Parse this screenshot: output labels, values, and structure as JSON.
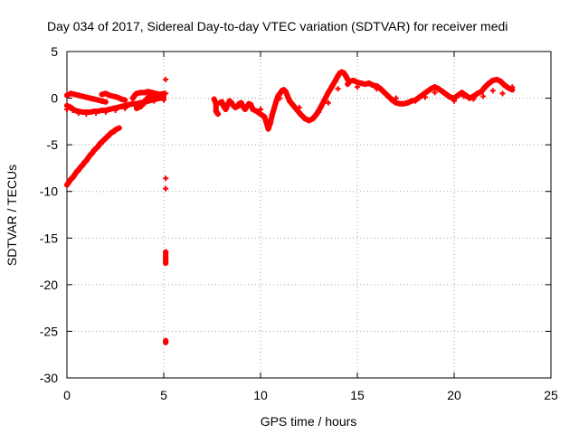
{
  "chart_data": {
    "type": "scatter",
    "title": "Day 034 of 2017, Sidereal Day-to-day VTEC variation (SDTVAR) for receiver medi",
    "xlabel": "GPS time / hours",
    "ylabel": "SDTVAR / TECUs",
    "xlim": [
      0,
      25
    ],
    "ylim": [
      -30,
      5
    ],
    "xticks": [
      0,
      5,
      10,
      15,
      20,
      25
    ],
    "xtick_labels": [
      "0",
      "5",
      "10",
      "15",
      "20",
      "25"
    ],
    "yticks": [
      5,
      0,
      -5,
      -10,
      -15,
      -20,
      -25,
      -30
    ],
    "ytick_labels": [
      "5",
      "0",
      "-5",
      "-10",
      "-15",
      "-20",
      "-25",
      "-30"
    ],
    "grid": true,
    "marker": "+",
    "series": [
      {
        "name": "SDTVAR",
        "color": "#ff0000",
        "points": [
          [
            0.0,
            0.3
          ],
          [
            0.2,
            0.5
          ],
          [
            0.4,
            0.4
          ],
          [
            0.6,
            0.3
          ],
          [
            0.8,
            0.2
          ],
          [
            1.0,
            0.1
          ],
          [
            1.2,
            0.0
          ],
          [
            1.4,
            -0.1
          ],
          [
            1.6,
            -0.2
          ],
          [
            1.8,
            -0.3
          ],
          [
            2.0,
            -0.4
          ],
          [
            0.0,
            -0.8
          ],
          [
            0.2,
            -1.0
          ],
          [
            0.4,
            -1.3
          ],
          [
            0.6,
            -1.4
          ],
          [
            0.8,
            -1.5
          ],
          [
            1.0,
            -1.5
          ],
          [
            1.2,
            -1.5
          ],
          [
            1.4,
            -1.4
          ],
          [
            1.6,
            -1.4
          ],
          [
            1.8,
            -1.3
          ],
          [
            2.0,
            -1.3
          ],
          [
            2.2,
            -1.2
          ],
          [
            2.4,
            -1.1
          ],
          [
            2.6,
            -1.0
          ],
          [
            2.8,
            -0.9
          ],
          [
            3.0,
            -0.8
          ],
          [
            3.2,
            -0.7
          ],
          [
            3.4,
            -0.6
          ],
          [
            3.6,
            -0.6
          ],
          [
            3.8,
            -0.5
          ],
          [
            4.0,
            -0.4
          ],
          [
            4.2,
            -0.3
          ],
          [
            4.4,
            -0.2
          ],
          [
            4.6,
            -0.1
          ],
          [
            4.8,
            0.0
          ],
          [
            5.0,
            0.1
          ],
          [
            0.0,
            -1.2
          ],
          [
            0.3,
            -1.3
          ],
          [
            0.6,
            -1.6
          ],
          [
            1.0,
            -1.7
          ],
          [
            1.5,
            -1.6
          ],
          [
            2.0,
            -1.5
          ],
          [
            2.5,
            -1.3
          ],
          [
            3.0,
            -1.1
          ],
          [
            3.5,
            -0.8
          ],
          [
            4.0,
            -0.6
          ],
          [
            4.5,
            -0.3
          ],
          [
            5.0,
            -0.2
          ],
          [
            1.8,
            0.4
          ],
          [
            2.0,
            0.5
          ],
          [
            2.2,
            0.3
          ],
          [
            2.4,
            0.2
          ],
          [
            2.6,
            0.1
          ],
          [
            2.8,
            -0.1
          ],
          [
            3.0,
            -0.2
          ],
          [
            3.4,
            0.0
          ],
          [
            3.5,
            0.3
          ],
          [
            3.6,
            0.5
          ],
          [
            3.8,
            0.6
          ],
          [
            4.0,
            0.6
          ],
          [
            4.2,
            0.7
          ],
          [
            4.4,
            0.6
          ],
          [
            4.6,
            0.5
          ],
          [
            4.8,
            0.4
          ],
          [
            5.0,
            0.5
          ],
          [
            3.6,
            -1.1
          ],
          [
            3.8,
            -0.9
          ],
          [
            4.0,
            -0.4
          ],
          [
            4.2,
            0.1
          ],
          [
            4.4,
            0.2
          ],
          [
            4.6,
            0.0
          ],
          [
            0.0,
            -9.3
          ],
          [
            0.1,
            -9.0
          ],
          [
            0.2,
            -8.7
          ],
          [
            0.3,
            -8.5
          ],
          [
            0.4,
            -8.2
          ],
          [
            0.5,
            -7.9
          ],
          [
            0.6,
            -7.7
          ],
          [
            0.7,
            -7.4
          ],
          [
            0.8,
            -7.2
          ],
          [
            0.9,
            -6.9
          ],
          [
            1.0,
            -6.7
          ],
          [
            1.1,
            -6.4
          ],
          [
            1.2,
            -6.1
          ],
          [
            1.3,
            -5.9
          ],
          [
            1.4,
            -5.6
          ],
          [
            1.5,
            -5.4
          ],
          [
            1.6,
            -5.2
          ],
          [
            1.7,
            -4.9
          ],
          [
            1.8,
            -4.7
          ],
          [
            1.9,
            -4.5
          ],
          [
            2.0,
            -4.3
          ],
          [
            2.1,
            -4.1
          ],
          [
            2.2,
            -3.9
          ],
          [
            2.3,
            -3.7
          ],
          [
            2.4,
            -3.6
          ],
          [
            2.5,
            -3.4
          ],
          [
            2.6,
            -3.3
          ],
          [
            2.7,
            -3.2
          ],
          [
            5.1,
            2.0
          ],
          [
            5.1,
            0.5
          ],
          [
            5.1,
            -8.6
          ],
          [
            5.1,
            -9.7
          ],
          [
            5.1,
            -16.5
          ],
          [
            5.1,
            -17.4
          ],
          [
            5.1,
            -17.7
          ],
          [
            5.1,
            -26.0
          ],
          [
            5.1,
            -26.2
          ],
          [
            7.6,
            -0.1
          ],
          [
            7.7,
            -0.6
          ],
          [
            7.7,
            -1.4
          ],
          [
            7.8,
            -1.7
          ],
          [
            7.9,
            -0.5
          ],
          [
            8.0,
            -0.4
          ],
          [
            8.1,
            -0.9
          ],
          [
            8.2,
            -1.2
          ],
          [
            8.3,
            -0.7
          ],
          [
            8.4,
            -0.3
          ],
          [
            8.5,
            -0.5
          ],
          [
            8.6,
            -0.8
          ],
          [
            8.7,
            -1.0
          ],
          [
            8.8,
            -0.9
          ],
          [
            8.9,
            -0.6
          ],
          [
            9.0,
            -0.5
          ],
          [
            9.1,
            -0.9
          ],
          [
            9.2,
            -1.2
          ],
          [
            9.3,
            -0.9
          ],
          [
            9.4,
            -0.6
          ],
          [
            9.5,
            -0.7
          ],
          [
            9.6,
            -1.2
          ],
          [
            9.8,
            -1.4
          ],
          [
            10.0,
            -1.7
          ],
          [
            10.2,
            -2.0
          ],
          [
            10.3,
            -2.6
          ],
          [
            10.4,
            -3.3
          ],
          [
            10.5,
            -2.7
          ],
          [
            10.6,
            -1.8
          ],
          [
            10.7,
            -1.1
          ],
          [
            10.8,
            -0.4
          ],
          [
            10.9,
            0.2
          ],
          [
            11.0,
            0.5
          ],
          [
            11.1,
            0.8
          ],
          [
            11.2,
            0.9
          ],
          [
            11.3,
            0.7
          ],
          [
            11.4,
            0.2
          ],
          [
            11.5,
            -0.3
          ],
          [
            11.7,
            -0.8
          ],
          [
            11.9,
            -1.3
          ],
          [
            12.1,
            -1.8
          ],
          [
            12.3,
            -2.2
          ],
          [
            12.5,
            -2.4
          ],
          [
            12.7,
            -2.2
          ],
          [
            12.9,
            -1.7
          ],
          [
            13.1,
            -1.0
          ],
          [
            13.3,
            -0.2
          ],
          [
            13.5,
            0.6
          ],
          [
            13.7,
            1.3
          ],
          [
            13.9,
            2.0
          ],
          [
            14.0,
            2.4
          ],
          [
            14.1,
            2.7
          ],
          [
            14.2,
            2.8
          ],
          [
            14.3,
            2.7
          ],
          [
            14.4,
            2.4
          ],
          [
            14.5,
            2.0
          ],
          [
            8.0,
            -0.4
          ],
          [
            9.0,
            -0.8
          ],
          [
            10.0,
            -1.2
          ],
          [
            11.0,
            0.0
          ],
          [
            12.0,
            -1.0
          ],
          [
            13.0,
            -1.5
          ],
          [
            13.5,
            -0.5
          ],
          [
            14.0,
            1.0
          ],
          [
            14.5,
            1.5
          ],
          [
            14.6,
            1.8
          ],
          [
            14.8,
            1.9
          ],
          [
            15.0,
            1.7
          ],
          [
            15.2,
            1.6
          ],
          [
            15.4,
            1.5
          ],
          [
            15.6,
            1.6
          ],
          [
            15.8,
            1.4
          ],
          [
            16.0,
            1.3
          ],
          [
            16.2,
            1.0
          ],
          [
            16.4,
            0.6
          ],
          [
            16.6,
            0.2
          ],
          [
            16.8,
            -0.2
          ],
          [
            17.0,
            -0.5
          ],
          [
            17.2,
            -0.6
          ],
          [
            17.4,
            -0.6
          ],
          [
            17.6,
            -0.5
          ],
          [
            17.8,
            -0.3
          ],
          [
            18.0,
            -0.2
          ],
          [
            18.2,
            0.1
          ],
          [
            18.4,
            0.4
          ],
          [
            18.6,
            0.7
          ],
          [
            18.8,
            1.0
          ],
          [
            19.0,
            1.2
          ],
          [
            19.2,
            1.0
          ],
          [
            19.4,
            0.7
          ],
          [
            19.6,
            0.4
          ],
          [
            19.8,
            0.1
          ],
          [
            20.0,
            0.0
          ],
          [
            20.2,
            0.3
          ],
          [
            20.4,
            0.6
          ],
          [
            20.6,
            0.3
          ],
          [
            20.8,
            0.0
          ],
          [
            21.0,
            0.2
          ],
          [
            21.2,
            0.5
          ],
          [
            21.4,
            0.7
          ],
          [
            21.6,
            1.2
          ],
          [
            21.8,
            1.6
          ],
          [
            22.0,
            1.9
          ],
          [
            22.2,
            2.0
          ],
          [
            22.4,
            1.8
          ],
          [
            22.6,
            1.4
          ],
          [
            22.8,
            1.1
          ],
          [
            23.0,
            0.9
          ],
          [
            15.0,
            1.2
          ],
          [
            16.0,
            1.0
          ],
          [
            17.0,
            0.0
          ],
          [
            18.0,
            -0.3
          ],
          [
            18.5,
            0.1
          ],
          [
            19.0,
            0.6
          ],
          [
            20.0,
            -0.3
          ],
          [
            20.5,
            0.2
          ],
          [
            21.0,
            -0.1
          ],
          [
            21.5,
            0.2
          ],
          [
            22.0,
            0.8
          ],
          [
            22.5,
            0.5
          ],
          [
            23.0,
            1.2
          ]
        ]
      }
    ]
  }
}
